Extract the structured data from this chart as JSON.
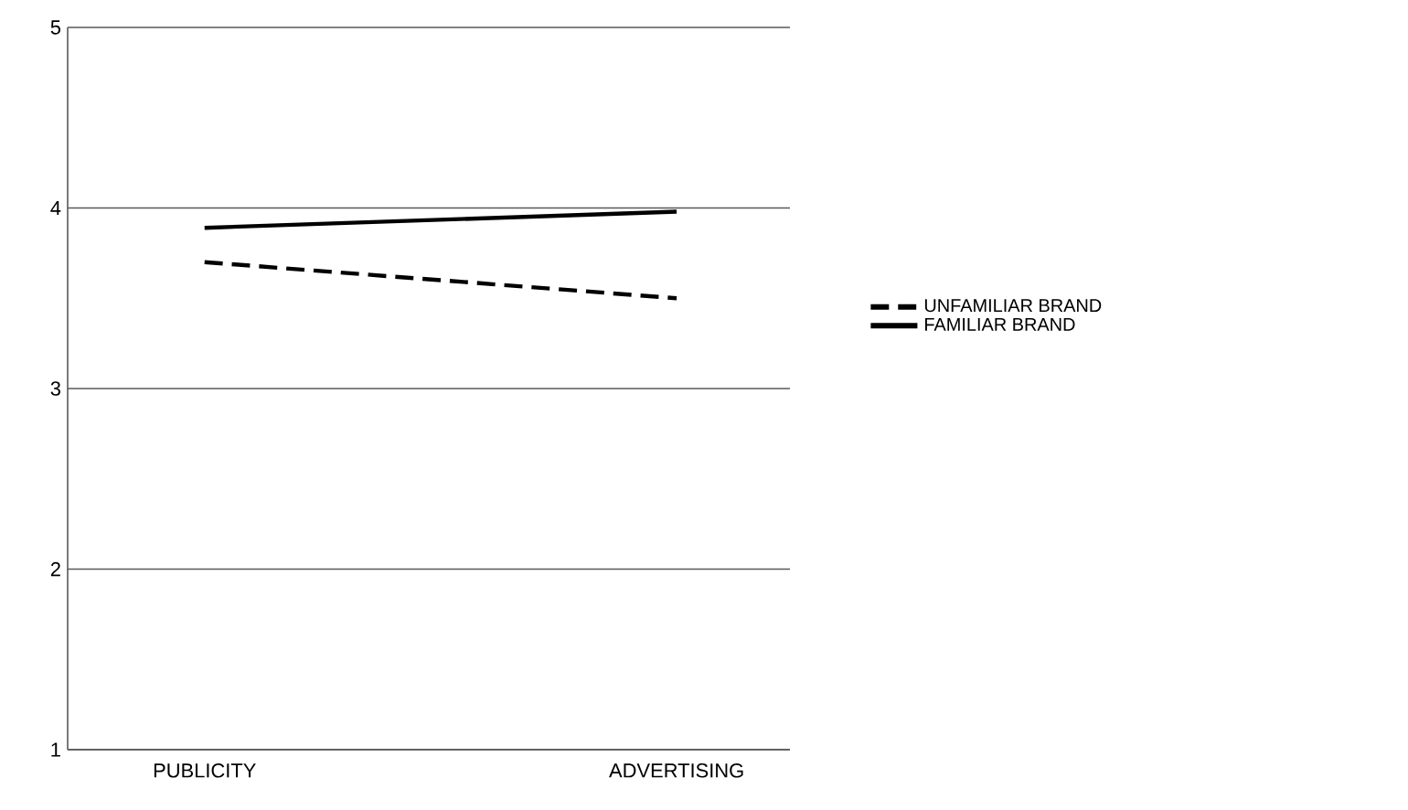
{
  "chart_data": {
    "type": "line",
    "categories": [
      "PUBLICITY",
      "ADVERTISING"
    ],
    "series": [
      {
        "name": "UNFAMILIAR BRAND",
        "color": "#000000",
        "line_style": "dashed",
        "values": [
          3.7,
          3.5
        ]
      },
      {
        "name": "FAMILIAR BRAND",
        "color": "#000000",
        "line_style": "solid",
        "values": [
          3.89,
          3.98
        ]
      }
    ],
    "ylim": [
      1,
      5
    ],
    "yticks": [
      1,
      2,
      3,
      4,
      5
    ],
    "grid": "y",
    "legend": "right",
    "marker": "none"
  }
}
